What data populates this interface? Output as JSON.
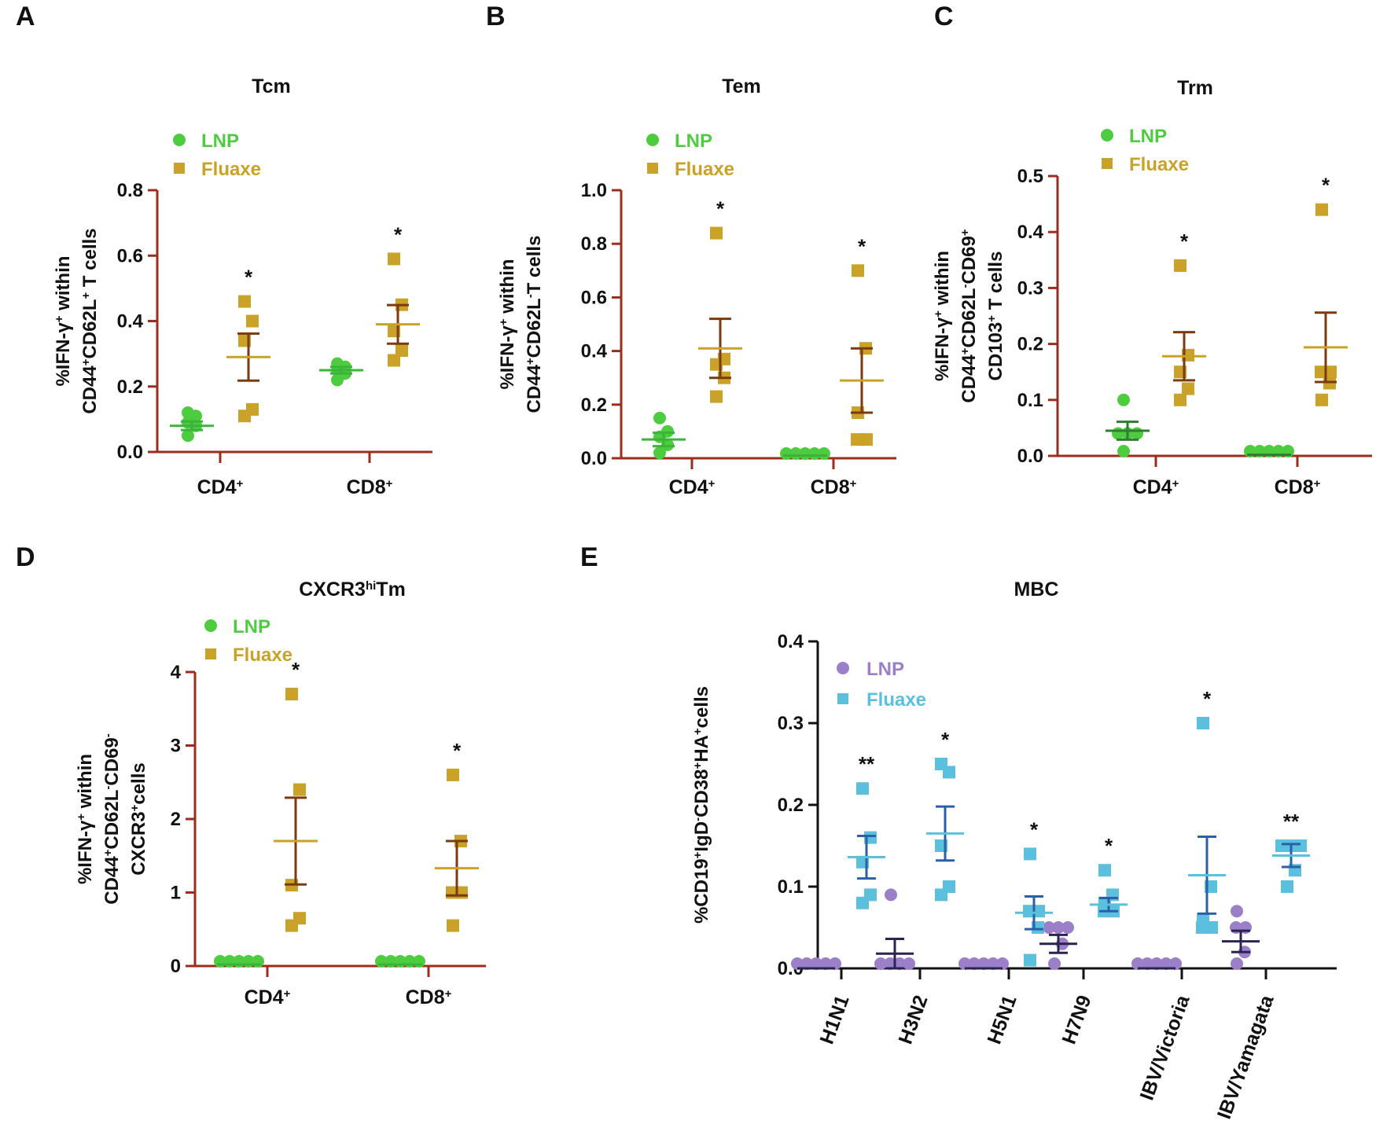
{
  "chart_data": [
    {
      "id": "A",
      "panel": "A",
      "type": "scatter",
      "title": "Tcm",
      "title_sup": "",
      "title_suffix": "",
      "ylabel": [
        [
          "%IFN-γ",
          "+",
          " within"
        ],
        [
          "CD44",
          "+",
          "CD62L",
          "+",
          " T cells"
        ]
      ],
      "ylim": [
        0,
        0.8
      ],
      "yticks": [
        "0.0",
        "0.2",
        "0.4",
        "0.6",
        "0.8"
      ],
      "categories": [
        [
          "CD4",
          "+"
        ],
        [
          "CD8",
          "+"
        ]
      ],
      "legend": [
        "LNP",
        "Fluaxe"
      ],
      "colors": {
        "LNP": "#4dcc40",
        "Fluaxe": "#c9a227",
        "LNP_bar": "#3cb33a",
        "Fluaxe_bar": "#7a3a12",
        "axis": "#9b2d1f"
      },
      "series": [
        {
          "name": "LNP",
          "marker": "circle",
          "values": [
            [
              0.05,
              0.08,
              0.09,
              0.11,
              0.12
            ],
            [
              0.22,
              0.24,
              0.25,
              0.26,
              0.27
            ]
          ],
          "mean": [
            0.08,
            0.25
          ],
          "sem": [
            0.013,
            0.01
          ]
        },
        {
          "name": "Fluaxe",
          "marker": "square",
          "values": [
            [
              0.11,
              0.13,
              0.34,
              0.4,
              0.46
            ],
            [
              0.28,
              0.31,
              0.37,
              0.45,
              0.59
            ]
          ],
          "mean": [
            0.29,
            0.39
          ],
          "sem": [
            0.072,
            0.059
          ]
        }
      ],
      "significance": [
        "*",
        "*"
      ]
    },
    {
      "id": "B",
      "panel": "B",
      "type": "scatter",
      "title": "Tem",
      "title_sup": "",
      "title_suffix": "",
      "ylabel": [
        [
          "%IFN-γ",
          "+",
          " within"
        ],
        [
          "CD44",
          "+",
          "CD62L",
          "-",
          "T cells"
        ]
      ],
      "ylim": [
        0,
        1.0
      ],
      "yticks": [
        "0.0",
        "0.2",
        "0.4",
        "0.6",
        "0.8",
        "1.0"
      ],
      "categories": [
        [
          "CD4",
          "+"
        ],
        [
          "CD8",
          "+"
        ]
      ],
      "legend": [
        "LNP",
        "Fluaxe"
      ],
      "colors": {
        "LNP": "#4dcc40",
        "Fluaxe": "#c9a227",
        "LNP_bar": "#3cb33a",
        "Fluaxe_bar": "#7a3a12",
        "axis": "#9b2d1f"
      },
      "series": [
        {
          "name": "LNP",
          "marker": "circle",
          "values": [
            [
              0.02,
              0.05,
              0.08,
              0.1,
              0.15
            ],
            [
              0.01,
              0.01,
              0.01,
              0.01,
              0.01
            ]
          ],
          "mean": [
            0.07,
            0.01
          ],
          "sem": [
            0.025,
            0.0
          ]
        },
        {
          "name": "Fluaxe",
          "marker": "square",
          "values": [
            [
              0.23,
              0.3,
              0.35,
              0.37,
              0.84
            ],
            [
              0.07,
              0.07,
              0.17,
              0.41,
              0.7
            ]
          ],
          "mean": [
            0.41,
            0.29
          ],
          "sem": [
            0.11,
            0.12
          ]
        }
      ],
      "significance": [
        "*",
        "*"
      ]
    },
    {
      "id": "C",
      "panel": "C",
      "type": "scatter",
      "title": "Trm",
      "title_sup": "",
      "title_suffix": "",
      "ylabel": [
        [
          "%IFN-γ",
          "+",
          " within"
        ],
        [
          "CD44",
          "+",
          "CD62L",
          "-",
          "CD69",
          "+"
        ],
        [
          "CD103",
          "+",
          " T cells"
        ]
      ],
      "ylim": [
        0,
        0.5
      ],
      "yticks": [
        "0.0",
        "0.1",
        "0.2",
        "0.3",
        "0.4",
        "0.5"
      ],
      "categories": [
        [
          "CD4",
          "+"
        ],
        [
          "CD8",
          "+"
        ]
      ],
      "legend": [
        "LNP",
        "Fluaxe"
      ],
      "colors": {
        "LNP": "#4dcc40",
        "Fluaxe": "#c9a227",
        "LNP_bar": "#2f7d2f",
        "Fluaxe_bar": "#7a3a12",
        "axis": "#9b2d1f"
      },
      "series": [
        {
          "name": "LNP",
          "marker": "circle",
          "values": [
            [
              0.005,
              0.04,
              0.04,
              0.04,
              0.1
            ],
            [
              0.002,
              0.002,
              0.002,
              0.002,
              0.002
            ]
          ],
          "mean": [
            0.045,
            0.002
          ],
          "sem": [
            0.016,
            0.0
          ]
        },
        {
          "name": "Fluaxe",
          "marker": "square",
          "values": [
            [
              0.1,
              0.12,
              0.15,
              0.18,
              0.34
            ],
            [
              0.1,
              0.13,
              0.15,
              0.15,
              0.44
            ]
          ],
          "mean": [
            0.178,
            0.194
          ],
          "sem": [
            0.043,
            0.062
          ]
        }
      ],
      "significance": [
        "*",
        "*"
      ]
    },
    {
      "id": "D",
      "panel": "D",
      "type": "scatter",
      "title": "CXCR3",
      "title_sup": "hi",
      "title_suffix": "Tm",
      "ylabel": [
        [
          "%IFN-γ",
          "+",
          " within"
        ],
        [
          "CD44",
          "+",
          "CD62L",
          "-",
          "CD69",
          "-"
        ],
        [
          "CXCR3",
          "+",
          "cells"
        ]
      ],
      "ylim": [
        0,
        4
      ],
      "yticks": [
        "0",
        "1",
        "2",
        "3",
        "4"
      ],
      "categories": [
        [
          "CD4",
          "+"
        ],
        [
          "CD8",
          "+"
        ]
      ],
      "legend": [
        "LNP",
        "Fluaxe"
      ],
      "colors": {
        "LNP": "#4dcc40",
        "Fluaxe": "#c9a227",
        "LNP_bar": "#3cb33a",
        "Fluaxe_bar": "#7a3a12",
        "axis": "#9b2d1f"
      },
      "series": [
        {
          "name": "LNP",
          "marker": "circle",
          "values": [
            [
              0.02,
              0.02,
              0.02,
              0.02,
              0.02
            ],
            [
              0.02,
              0.02,
              0.02,
              0.02,
              0.02
            ]
          ],
          "mean": [
            0.02,
            0.02
          ],
          "sem": [
            0.0,
            0.0
          ]
        },
        {
          "name": "Fluaxe",
          "marker": "square",
          "values": [
            [
              0.55,
              0.65,
              1.1,
              2.4,
              3.7
            ],
            [
              0.55,
              1.0,
              1.0,
              1.7,
              2.6
            ]
          ],
          "mean": [
            1.7,
            1.33
          ],
          "sem": [
            0.59,
            0.37
          ]
        }
      ],
      "significance": [
        "*",
        "*"
      ]
    },
    {
      "id": "E",
      "panel": "E",
      "type": "scatter",
      "title": "MBC",
      "title_sup": "",
      "title_suffix": "",
      "ylabel": [
        [
          "%CD19",
          "+",
          "IgD",
          "-",
          "CD38",
          "+",
          "HA",
          "+",
          "cells"
        ]
      ],
      "ylim": [
        0,
        0.4
      ],
      "yticks": [
        "0.0",
        "0.1",
        "0.2",
        "0.3",
        "0.4"
      ],
      "categories": [
        [
          "H1N1"
        ],
        [
          "H3N2"
        ],
        [
          "H5N1"
        ],
        [
          "H7N9"
        ],
        [
          "IBV/Victoria"
        ],
        [
          "IBV/Yamagata"
        ]
      ],
      "legend": [
        "LNP",
        "Fluaxe"
      ],
      "colors": {
        "LNP": "#9b7fc8",
        "Fluaxe": "#5bc0de",
        "LNP_bar": "#2a2452",
        "Fluaxe_bar": "#2b5fa8",
        "axis": "#111111"
      },
      "series": [
        {
          "name": "LNP",
          "marker": "circle",
          "values": [
            [
              0.0,
              0.0,
              0.0,
              0.0,
              0.0
            ],
            [
              0.0,
              0.0,
              0.0,
              0.0,
              0.09
            ],
            [
              0.0,
              0.0,
              0.0,
              0.0,
              0.0
            ],
            [
              0.0,
              0.03,
              0.05,
              0.05,
              0.05
            ],
            [
              0.0,
              0.0,
              0.0,
              0.0,
              0.0
            ],
            [
              0.0,
              0.02,
              0.05,
              0.05,
              0.07
            ]
          ],
          "mean": [
            0.0,
            0.018,
            0.0,
            0.03,
            0.0,
            0.033
          ],
          "sem": [
            0.0,
            0.018,
            0.0,
            0.011,
            0.0,
            0.013
          ]
        },
        {
          "name": "Fluaxe",
          "marker": "square",
          "values": [
            [
              0.08,
              0.09,
              0.13,
              0.16,
              0.22
            ],
            [
              0.09,
              0.1,
              0.15,
              0.24,
              0.25
            ],
            [
              0.01,
              0.05,
              0.07,
              0.07,
              0.14
            ],
            [
              0.07,
              0.07,
              0.08,
              0.09,
              0.12
            ],
            [
              0.05,
              0.05,
              0.06,
              0.1,
              0.3
            ],
            [
              0.1,
              0.12,
              0.15,
              0.15,
              0.15
            ]
          ],
          "mean": [
            0.136,
            0.165,
            0.068,
            0.078,
            0.114,
            0.138
          ],
          "sem": [
            0.026,
            0.033,
            0.02,
            0.008,
            0.047,
            0.014
          ]
        }
      ],
      "significance": [
        "**",
        "*",
        "*",
        "*",
        "*",
        "**"
      ]
    }
  ]
}
